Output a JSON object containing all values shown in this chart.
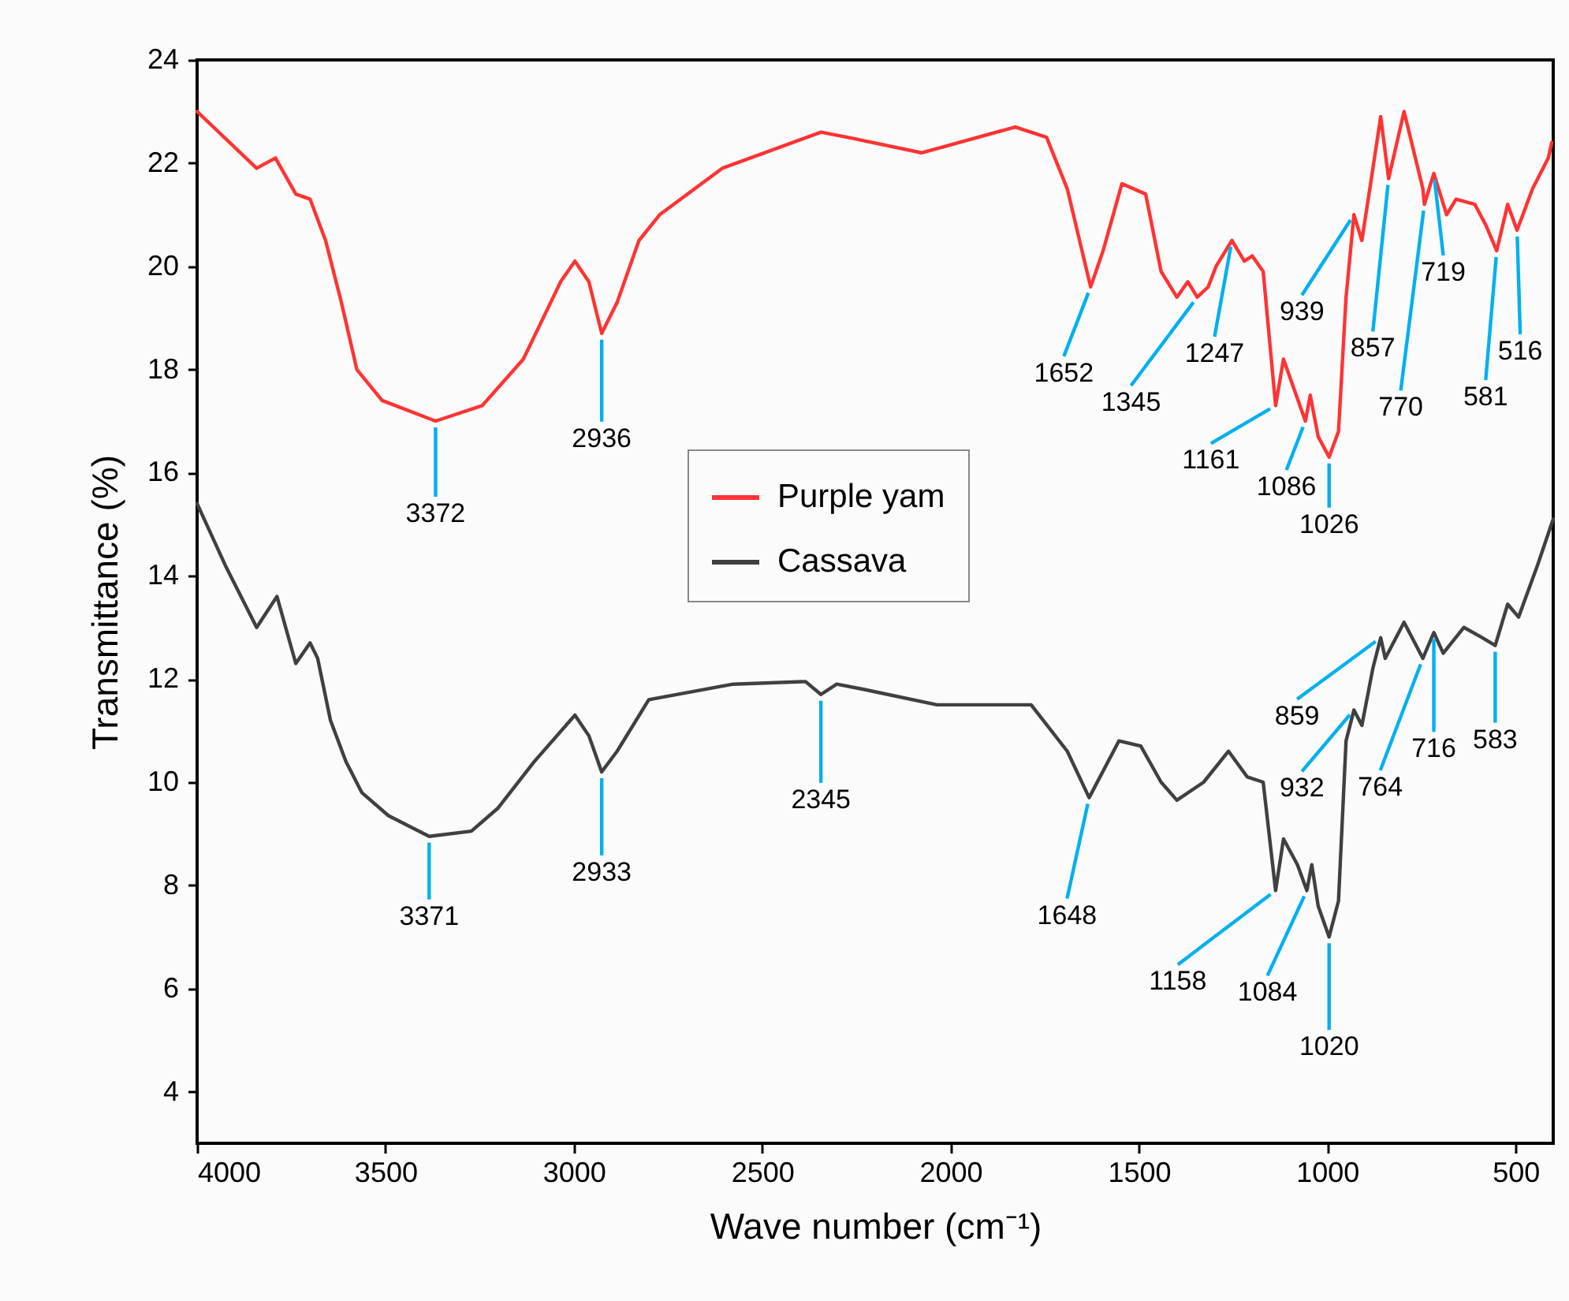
{
  "chart_data": {
    "type": "line",
    "xlabel": "Wave number (cm⁻¹)",
    "ylabel": "Transmittance (%)",
    "xlim": [
      4000,
      400
    ],
    "ylim": [
      3,
      24
    ],
    "xticks": [
      4000,
      3500,
      3000,
      2500,
      2000,
      1500,
      1000,
      500
    ],
    "yticks": [
      4,
      6,
      8,
      10,
      12,
      14,
      16,
      18,
      20,
      22,
      24
    ],
    "grid": false,
    "legend": "center",
    "marker": "none",
    "line_style": "solid",
    "series": [
      {
        "name": "Purple yam",
        "color": "#ff3333",
        "x": [
          4000,
          3842,
          3792,
          3738,
          3700,
          3659,
          3617,
          3576,
          3509,
          3367,
          3243,
          3134,
          3035,
          2997,
          2960,
          2926,
          2885,
          2827,
          2772,
          2606,
          2344,
          2273,
          2077,
          1828,
          1745,
          1690,
          1628,
          1595,
          1545,
          1482,
          1441,
          1399,
          1370,
          1345,
          1316,
          1295,
          1253,
          1220,
          1199,
          1170,
          1137,
          1116,
          1087,
          1058,
          1045,
          1024,
          995,
          970,
          950,
          929,
          908,
          887,
          858,
          837,
          796,
          746,
          742,
          717,
          683,
          658,
          608,
          579,
          550,
          521,
          496,
          455,
          413,
          404
        ],
        "values": [
          23.0,
          21.9,
          22.1,
          21.4,
          21.3,
          20.5,
          19.3,
          18.0,
          17.4,
          17.0,
          17.3,
          18.2,
          19.7,
          20.1,
          19.7,
          18.7,
          19.3,
          20.5,
          21.0,
          21.9,
          22.6,
          22.5,
          22.2,
          22.7,
          22.5,
          21.5,
          19.6,
          20.3,
          21.6,
          21.4,
          19.9,
          19.4,
          19.7,
          19.4,
          19.6,
          20.0,
          20.5,
          20.1,
          20.2,
          19.9,
          17.3,
          18.2,
          17.6,
          17.0,
          17.5,
          16.7,
          16.3,
          16.8,
          19.4,
          21.0,
          20.5,
          21.5,
          22.9,
          21.7,
          23.0,
          21.5,
          21.2,
          21.8,
          21.0,
          21.3,
          21.2,
          20.8,
          20.3,
          21.2,
          20.7,
          21.5,
          22.1,
          22.4
        ]
      },
      {
        "name": "Cassava",
        "color": "#404040",
        "x": [
          4000,
          3925,
          3842,
          3788,
          3738,
          3700,
          3680,
          3646,
          3605,
          3563,
          3492,
          3384,
          3272,
          3201,
          3105,
          2997,
          2960,
          2926,
          2885,
          2801,
          2577,
          2385,
          2344,
          2302,
          2231,
          2036,
          1786,
          1690,
          1632,
          1553,
          1495,
          1441,
          1399,
          1328,
          1262,
          1212,
          1170,
          1137,
          1116,
          1079,
          1054,
          1041,
          1024,
          995,
          970,
          950,
          929,
          908,
          879,
          858,
          846,
          796,
          746,
          717,
          692,
          637,
          588,
          554,
          521,
          492,
          442,
          400
        ],
        "values": [
          15.4,
          14.2,
          13.0,
          13.6,
          12.3,
          12.7,
          12.4,
          11.2,
          10.4,
          9.8,
          9.35,
          8.95,
          9.05,
          9.5,
          10.4,
          11.3,
          10.9,
          10.2,
          10.6,
          11.6,
          11.9,
          11.95,
          11.7,
          11.9,
          11.8,
          11.5,
          11.5,
          10.6,
          9.7,
          10.8,
          10.7,
          10.0,
          9.65,
          10.0,
          10.6,
          10.1,
          10.0,
          7.9,
          8.9,
          8.4,
          7.9,
          8.4,
          7.6,
          7.0,
          7.7,
          10.8,
          11.4,
          11.1,
          12.2,
          12.8,
          12.4,
          13.1,
          12.4,
          12.9,
          12.5,
          13.0,
          12.8,
          12.65,
          13.45,
          13.2,
          14.2,
          15.1
        ]
      }
    ],
    "annotations": [
      {
        "text": "3372",
        "x": 3367,
        "y": 17.0
      },
      {
        "text": "2936",
        "x": 2926,
        "y": 18.7
      },
      {
        "text": "1652",
        "x": 1628,
        "y": 19.6
      },
      {
        "text": "1345",
        "x": 1345,
        "y": 19.4
      },
      {
        "text": "1247",
        "x": 1253,
        "y": 20.5
      },
      {
        "text": "1161",
        "x": 1137,
        "y": 17.3
      },
      {
        "text": "1086",
        "x": 1058,
        "y": 17.0
      },
      {
        "text": "1026",
        "x": 995,
        "y": 16.3
      },
      {
        "text": "939",
        "x": 929,
        "y": 21.0
      },
      {
        "text": "857",
        "x": 837,
        "y": 21.7
      },
      {
        "text": "770",
        "x": 742,
        "y": 21.2
      },
      {
        "text": "719",
        "x": 717,
        "y": 21.8
      },
      {
        "text": "581",
        "x": 550,
        "y": 20.3
      },
      {
        "text": "516",
        "x": 496,
        "y": 20.7
      },
      {
        "text": "3371",
        "x": 3384,
        "y": 8.95
      },
      {
        "text": "2933",
        "x": 2926,
        "y": 10.2
      },
      {
        "text": "2345",
        "x": 2344,
        "y": 11.7
      },
      {
        "text": "1648",
        "x": 1632,
        "y": 9.7
      },
      {
        "text": "1158",
        "x": 1137,
        "y": 7.9
      },
      {
        "text": "1084",
        "x": 1054,
        "y": 7.9
      },
      {
        "text": "1020",
        "x": 995,
        "y": 7.0
      },
      {
        "text": "932",
        "x": 929,
        "y": 11.4
      },
      {
        "text": "859",
        "x": 858,
        "y": 12.8
      },
      {
        "text": "764",
        "x": 746,
        "y": 12.4
      },
      {
        "text": "716",
        "x": 717,
        "y": 12.9
      },
      {
        "text": "583",
        "x": 554,
        "y": 12.65
      }
    ]
  }
}
